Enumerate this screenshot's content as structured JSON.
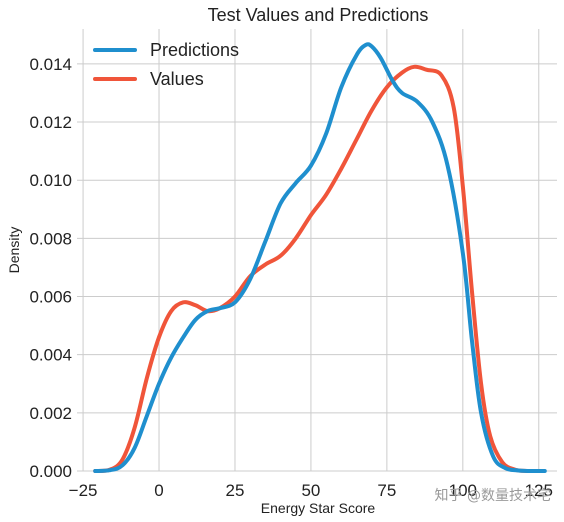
{
  "chart_data": {
    "type": "line",
    "title": "Test Values and Predictions",
    "xlabel": "Energy Star Score",
    "ylabel": "Density",
    "xlim": [
      -27,
      131
    ],
    "ylim": [
      0,
      0.0152
    ],
    "xticks": [
      -25,
      0,
      25,
      50,
      75,
      100,
      125
    ],
    "xtick_labels": [
      "−25",
      "0",
      "25",
      "50",
      "75",
      "100",
      "125"
    ],
    "yticks": [
      0,
      0.002,
      0.004,
      0.006,
      0.008,
      0.01,
      0.012,
      0.014
    ],
    "ytick_labels": [
      "0.000",
      "0.002",
      "0.004",
      "0.006",
      "0.008",
      "0.010",
      "0.012",
      "0.014"
    ],
    "grid": true,
    "legend_position": "top-left",
    "series": [
      {
        "name": "Predictions",
        "color": "#1f8fce",
        "x": [
          -21,
          -16,
          -12,
          -8,
          -4,
          0,
          4,
          8,
          12,
          16,
          20,
          25,
          30,
          35,
          40,
          45,
          50,
          55,
          60,
          65,
          68,
          70,
          73,
          77,
          80,
          85,
          90,
          95,
          100,
          103,
          106,
          110,
          114,
          118,
          122,
          127
        ],
        "y": [
          0,
          3e-05,
          0.0002,
          0.0008,
          0.0019,
          0.003,
          0.0039,
          0.0046,
          0.0052,
          0.0055,
          0.0056,
          0.0058,
          0.0066,
          0.0079,
          0.0092,
          0.0099,
          0.0105,
          0.0116,
          0.0132,
          0.0143,
          0.01465,
          0.0146,
          0.0142,
          0.0134,
          0.013,
          0.0127,
          0.012,
          0.0105,
          0.0075,
          0.0045,
          0.002,
          0.0005,
          0.0001,
          2e-05,
          0,
          0
        ]
      },
      {
        "name": "Values",
        "color": "#f0553a",
        "x": [
          -21,
          -16,
          -12,
          -8,
          -4,
          0,
          4,
          8,
          12,
          16,
          20,
          25,
          30,
          35,
          40,
          45,
          50,
          55,
          60,
          65,
          70,
          75,
          80,
          84,
          88,
          93,
          97,
          100,
          103,
          106,
          109,
          113,
          117,
          121
        ],
        "y": [
          0,
          5e-05,
          0.0004,
          0.0015,
          0.0032,
          0.0046,
          0.0055,
          0.0058,
          0.0057,
          0.0055,
          0.0056,
          0.006,
          0.0067,
          0.0071,
          0.0074,
          0.008,
          0.0088,
          0.0095,
          0.0104,
          0.0114,
          0.0124,
          0.0132,
          0.0137,
          0.0139,
          0.0138,
          0.0136,
          0.0125,
          0.0098,
          0.0062,
          0.003,
          0.0012,
          0.0003,
          5e-05,
          0
        ]
      }
    ]
  },
  "watermark": "知乎 @数量技术宅"
}
